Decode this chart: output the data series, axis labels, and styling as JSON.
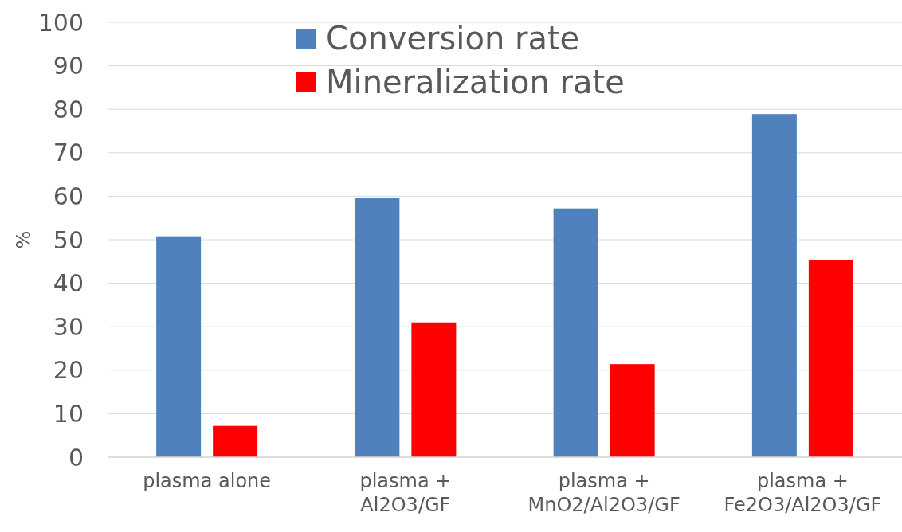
{
  "chart_data": {
    "type": "bar",
    "ylabel": "%",
    "categories": [
      "plasma alone",
      "plasma +\nAl2O3/GF",
      "plasma +\nMnO2/Al2O3/GF",
      "plasma +\nFe2O3/Al2O3/GF"
    ],
    "series": [
      {
        "name": "Conversion rate",
        "color": "#4f81bd",
        "values": [
          50.8,
          59.7,
          57.2,
          78.9
        ]
      },
      {
        "name": "Mineralization rate",
        "color": "#ff0000",
        "values": [
          7.2,
          31.0,
          21.4,
          45.3
        ]
      }
    ],
    "ylim": [
      0,
      100
    ],
    "yticks": [
      0,
      10,
      20,
      30,
      40,
      50,
      60,
      70,
      80,
      90,
      100
    ],
    "grid": "y",
    "legend": "top"
  }
}
